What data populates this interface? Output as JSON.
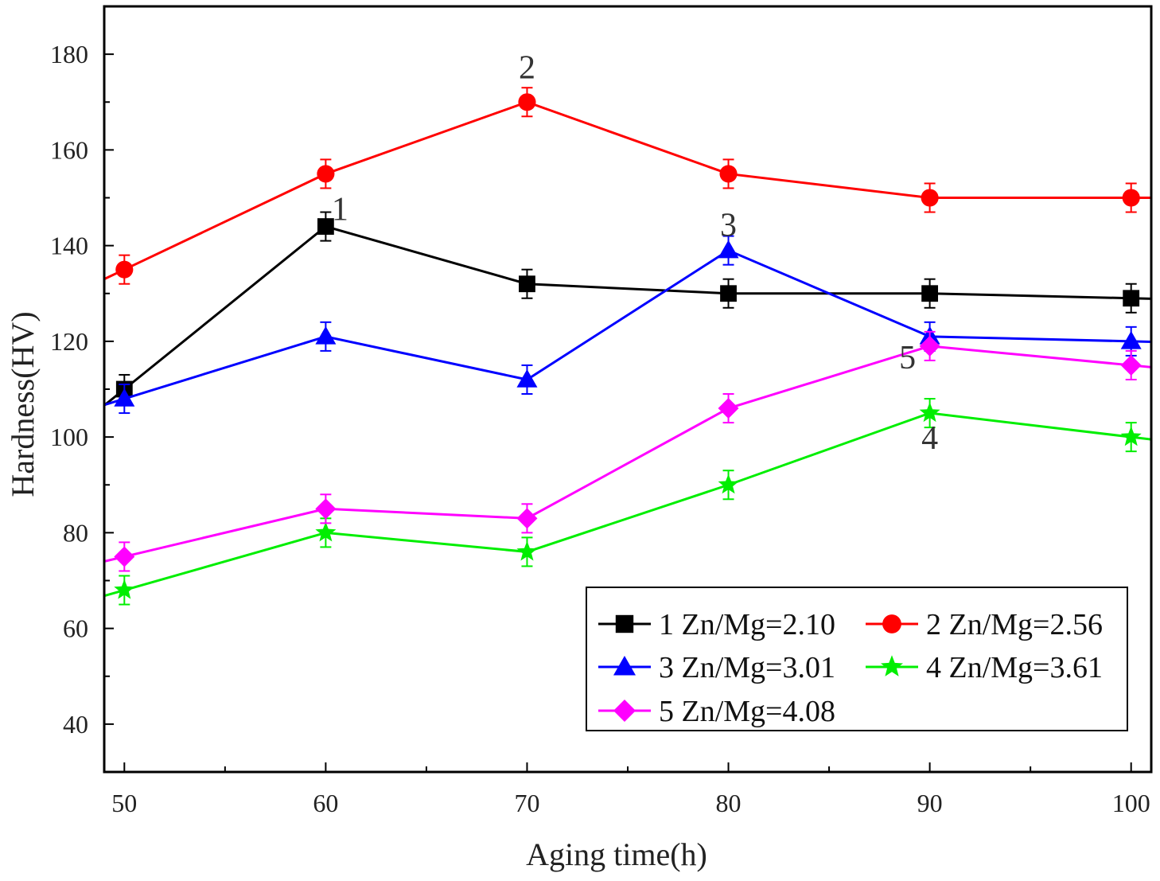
{
  "chart_data": {
    "type": "line",
    "title": "",
    "xlabel": "Aging time(h)",
    "ylabel": "Hardness(HV)",
    "xlim": [
      49,
      101
    ],
    "ylim": [
      30,
      190
    ],
    "x": [
      50,
      60,
      70,
      80,
      90,
      100
    ],
    "xticks": [
      "50",
      "60",
      "70",
      "80",
      "90",
      "100"
    ],
    "yticks": [
      "40",
      "60",
      "80",
      "100",
      "120",
      "140",
      "160",
      "180"
    ],
    "grid": false,
    "legend_position": "bottom-right",
    "error_bar": 3,
    "series": [
      {
        "name": "1 Zn/Mg=2.10",
        "color": "#000000",
        "marker": "square",
        "values": [
          110,
          144,
          132,
          130,
          130,
          129
        ],
        "annotation": {
          "text": "1",
          "at": 60
        }
      },
      {
        "name": "2 Zn/Mg=2.56",
        "color": "#ff0000",
        "marker": "circle",
        "values": [
          135,
          155,
          170,
          155,
          150,
          150
        ],
        "annotation": {
          "text": "2",
          "at": 70
        }
      },
      {
        "name": "3 Zn/Mg=3.01",
        "color": "#0000ff",
        "marker": "triangle",
        "values": [
          108,
          121,
          112,
          139,
          121,
          120
        ],
        "annotation": {
          "text": "3",
          "at": 80
        }
      },
      {
        "name": "4 Zn/Mg=3.61",
        "color": "#00ee00",
        "marker": "star",
        "values": [
          68,
          80,
          76,
          90,
          105,
          100
        ],
        "annotation": {
          "text": "4",
          "at": 90
        }
      },
      {
        "name": "5 Zn/Mg=4.08",
        "color": "#ff00ff",
        "marker": "diamond",
        "values": [
          75,
          85,
          83,
          106,
          119,
          115
        ],
        "annotation": {
          "text": "5",
          "at": 90
        }
      }
    ]
  }
}
